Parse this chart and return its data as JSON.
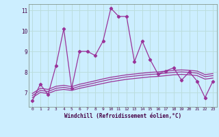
{
  "xlabel": "Windchill (Refroidissement éolien,°C)",
  "bg_color": "#cceeff",
  "line_color": "#993399",
  "grid_color": "#aadddd",
  "xlim": [
    -0.5,
    23.5
  ],
  "ylim": [
    6.3,
    11.3
  ],
  "xticks": [
    0,
    1,
    2,
    3,
    4,
    5,
    6,
    7,
    8,
    9,
    10,
    11,
    12,
    13,
    14,
    15,
    16,
    17,
    18,
    19,
    20,
    21,
    22,
    23
  ],
  "yticks": [
    7,
    8,
    9,
    10,
    11
  ],
  "main_line": [
    6.6,
    7.4,
    6.9,
    8.3,
    10.1,
    7.2,
    9.0,
    9.0,
    8.8,
    9.5,
    11.1,
    10.7,
    10.7,
    8.5,
    9.5,
    8.6,
    7.9,
    8.05,
    8.2,
    7.6,
    8.0,
    7.55,
    6.75,
    7.55
  ],
  "line2": [
    6.75,
    7.0,
    6.95,
    7.1,
    7.15,
    7.1,
    7.2,
    7.28,
    7.36,
    7.44,
    7.52,
    7.58,
    7.64,
    7.68,
    7.72,
    7.76,
    7.78,
    7.82,
    7.86,
    7.88,
    7.86,
    7.82,
    7.65,
    7.7
  ],
  "line3": [
    6.85,
    7.1,
    7.05,
    7.2,
    7.25,
    7.18,
    7.3,
    7.38,
    7.47,
    7.56,
    7.64,
    7.7,
    7.76,
    7.8,
    7.84,
    7.88,
    7.9,
    7.94,
    7.98,
    8.0,
    7.98,
    7.94,
    7.77,
    7.82
  ],
  "line4": [
    6.95,
    7.2,
    7.15,
    7.3,
    7.35,
    7.28,
    7.4,
    7.48,
    7.57,
    7.66,
    7.74,
    7.8,
    7.86,
    7.9,
    7.94,
    7.98,
    8.0,
    8.04,
    8.08,
    8.1,
    8.08,
    8.04,
    7.87,
    7.92
  ]
}
